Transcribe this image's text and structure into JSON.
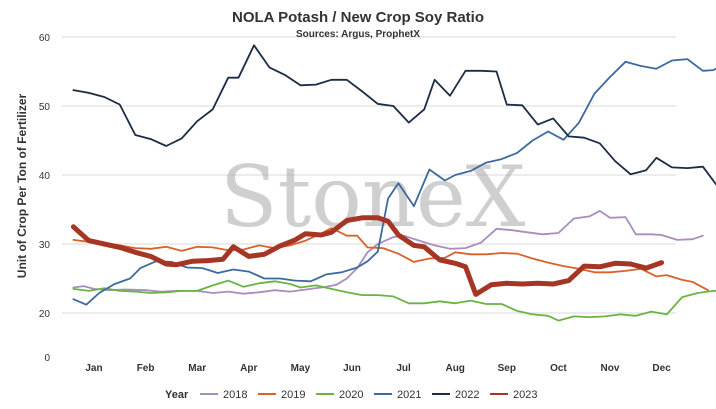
{
  "chart_data": {
    "type": "line",
    "title": "NOLA Potash / New Crop Soy Ratio",
    "subtitle": "Sources: Argus, ProphetX",
    "ylabel": "Unit of Crop Per Ton of Fertilizer",
    "xlabel": "",
    "ylim": [
      0,
      60
    ],
    "yticks": [
      0,
      20,
      30,
      40,
      50,
      60
    ],
    "ytick_labels": [
      "0",
      "20",
      "30",
      "40",
      "50",
      "60"
    ],
    "grid": true,
    "months": [
      "Jan",
      "Feb",
      "Mar",
      "Apr",
      "May",
      "Jun",
      "Jul",
      "Aug",
      "Sep",
      "Oct",
      "Nov",
      "Dec"
    ],
    "legend_title": "Year",
    "legend_position": "bottom",
    "watermark": "StoneX",
    "series": [
      {
        "name": "2018",
        "color": "#a98dbd",
        "width": 1.8,
        "points": [
          [
            -0.4,
            23.7
          ],
          [
            -0.2,
            23.9
          ],
          [
            0.0,
            23.5
          ],
          [
            0.3,
            23.3
          ],
          [
            0.6,
            23.4
          ],
          [
            1.0,
            23.3
          ],
          [
            1.3,
            23.1
          ],
          [
            1.6,
            23.2
          ],
          [
            2.0,
            23.2
          ],
          [
            2.3,
            22.9
          ],
          [
            2.6,
            23.1
          ],
          [
            2.9,
            22.8
          ],
          [
            3.2,
            23.0
          ],
          [
            3.5,
            23.3
          ],
          [
            3.8,
            23.1
          ],
          [
            4.2,
            23.5
          ],
          [
            4.5,
            23.8
          ],
          [
            4.7,
            24.1
          ],
          [
            4.9,
            25.0
          ],
          [
            5.1,
            26.5
          ],
          [
            5.3,
            28.8
          ],
          [
            5.5,
            30.0
          ],
          [
            5.8,
            31.0
          ],
          [
            6.0,
            31.2
          ],
          [
            6.3,
            30.5
          ],
          [
            6.6,
            29.8
          ],
          [
            6.9,
            29.3
          ],
          [
            7.2,
            29.4
          ],
          [
            7.5,
            30.2
          ],
          [
            7.8,
            32.2
          ],
          [
            8.1,
            32.0
          ],
          [
            8.4,
            31.7
          ],
          [
            8.7,
            31.4
          ],
          [
            9.0,
            31.6
          ],
          [
            9.3,
            33.7
          ],
          [
            9.6,
            34.0
          ],
          [
            9.8,
            34.8
          ],
          [
            10.0,
            33.8
          ],
          [
            10.3,
            33.9
          ],
          [
            10.5,
            31.4
          ],
          [
            10.8,
            31.4
          ],
          [
            11.0,
            31.3
          ],
          [
            11.3,
            30.6
          ],
          [
            11.6,
            30.7
          ],
          [
            11.8,
            31.2
          ]
        ]
      },
      {
        "name": "2019",
        "color": "#d8622a",
        "width": 1.8,
        "points": [
          [
            -0.4,
            30.6
          ],
          [
            -0.1,
            30.3
          ],
          [
            0.2,
            30.2
          ],
          [
            0.5,
            29.8
          ],
          [
            0.8,
            29.4
          ],
          [
            1.1,
            29.3
          ],
          [
            1.4,
            29.6
          ],
          [
            1.7,
            29.0
          ],
          [
            2.0,
            29.6
          ],
          [
            2.3,
            29.5
          ],
          [
            2.6,
            29.1
          ],
          [
            2.9,
            29.2
          ],
          [
            3.2,
            29.8
          ],
          [
            3.5,
            29.4
          ],
          [
            3.8,
            29.8
          ],
          [
            4.1,
            30.5
          ],
          [
            4.4,
            31.5
          ],
          [
            4.6,
            32.3
          ],
          [
            4.9,
            31.2
          ],
          [
            5.1,
            31.2
          ],
          [
            5.3,
            29.5
          ],
          [
            5.6,
            29.4
          ],
          [
            5.9,
            28.6
          ],
          [
            6.2,
            27.4
          ],
          [
            6.5,
            27.9
          ],
          [
            6.8,
            28.0
          ],
          [
            7.0,
            28.8
          ],
          [
            7.3,
            28.5
          ],
          [
            7.6,
            28.5
          ],
          [
            7.9,
            28.7
          ],
          [
            8.2,
            28.6
          ],
          [
            8.5,
            27.9
          ],
          [
            8.8,
            27.3
          ],
          [
            9.1,
            26.8
          ],
          [
            9.4,
            26.4
          ],
          [
            9.7,
            25.9
          ],
          [
            10.0,
            25.9
          ],
          [
            10.3,
            26.1
          ],
          [
            10.6,
            26.4
          ],
          [
            10.9,
            25.3
          ],
          [
            11.1,
            25.5
          ],
          [
            11.4,
            24.8
          ],
          [
            11.6,
            24.5
          ],
          [
            11.9,
            23.3
          ]
        ]
      },
      {
        "name": "2020",
        "color": "#6ab443",
        "width": 1.8,
        "points": [
          [
            -0.4,
            23.5
          ],
          [
            -0.1,
            23.2
          ],
          [
            0.2,
            23.6
          ],
          [
            0.5,
            23.2
          ],
          [
            0.8,
            23.1
          ],
          [
            1.1,
            22.9
          ],
          [
            1.4,
            23.0
          ],
          [
            1.7,
            23.2
          ],
          [
            2.0,
            23.2
          ],
          [
            2.3,
            24.0
          ],
          [
            2.6,
            24.7
          ],
          [
            2.9,
            23.8
          ],
          [
            3.2,
            24.3
          ],
          [
            3.5,
            24.6
          ],
          [
            3.8,
            24.2
          ],
          [
            4.0,
            23.7
          ],
          [
            4.3,
            24.0
          ],
          [
            4.6,
            23.5
          ],
          [
            4.9,
            23.0
          ],
          [
            5.2,
            22.6
          ],
          [
            5.5,
            22.6
          ],
          [
            5.8,
            22.4
          ],
          [
            6.1,
            21.4
          ],
          [
            6.4,
            21.4
          ],
          [
            6.7,
            21.7
          ],
          [
            7.0,
            21.4
          ],
          [
            7.3,
            21.8
          ],
          [
            7.6,
            21.3
          ],
          [
            7.9,
            21.3
          ],
          [
            8.2,
            20.3
          ],
          [
            8.5,
            19.8
          ],
          [
            8.8,
            19.6
          ],
          [
            9.0,
            18.9
          ],
          [
            9.3,
            19.5
          ],
          [
            9.6,
            19.4
          ],
          [
            9.9,
            19.5
          ],
          [
            10.2,
            19.8
          ],
          [
            10.5,
            19.6
          ],
          [
            10.8,
            20.2
          ],
          [
            11.1,
            19.8
          ],
          [
            11.4,
            22.3
          ],
          [
            11.7,
            22.9
          ],
          [
            12.0,
            23.2
          ],
          [
            12.3,
            23.2
          ],
          [
            12.6,
            23.0
          ]
        ]
      },
      {
        "name": "2021",
        "color": "#3d6a9e",
        "width": 1.8,
        "points": [
          [
            -0.4,
            22.0
          ],
          [
            -0.15,
            21.2
          ],
          [
            0.1,
            22.9
          ],
          [
            0.4,
            24.2
          ],
          [
            0.7,
            25.0
          ],
          [
            0.9,
            26.5
          ],
          [
            1.2,
            27.5
          ],
          [
            1.5,
            27.4
          ],
          [
            1.8,
            26.6
          ],
          [
            2.1,
            26.5
          ],
          [
            2.4,
            25.8
          ],
          [
            2.7,
            26.3
          ],
          [
            3.0,
            26.0
          ],
          [
            3.3,
            25.0
          ],
          [
            3.6,
            25.0
          ],
          [
            3.9,
            24.7
          ],
          [
            4.2,
            24.6
          ],
          [
            4.5,
            25.6
          ],
          [
            4.8,
            25.9
          ],
          [
            5.1,
            26.6
          ],
          [
            5.3,
            27.5
          ],
          [
            5.5,
            28.9
          ],
          [
            5.7,
            36.6
          ],
          [
            5.9,
            38.8
          ],
          [
            6.2,
            35.5
          ],
          [
            6.5,
            40.8
          ],
          [
            6.8,
            39.2
          ],
          [
            7.0,
            40.0
          ],
          [
            7.3,
            40.6
          ],
          [
            7.6,
            41.8
          ],
          [
            7.9,
            42.3
          ],
          [
            8.2,
            43.2
          ],
          [
            8.5,
            45.0
          ],
          [
            8.8,
            46.3
          ],
          [
            9.1,
            45.1
          ],
          [
            9.4,
            47.6
          ],
          [
            9.7,
            51.8
          ],
          [
            10.0,
            54.2
          ],
          [
            10.3,
            56.4
          ],
          [
            10.6,
            55.8
          ],
          [
            10.9,
            55.4
          ],
          [
            11.2,
            56.6
          ],
          [
            11.5,
            56.8
          ],
          [
            11.8,
            55.1
          ],
          [
            12.0,
            55.2
          ],
          [
            12.3,
            56.3
          ],
          [
            12.5,
            55.0
          ],
          [
            12.7,
            55.0
          ],
          [
            12.9,
            54.0
          ]
        ]
      },
      {
        "name": "2022",
        "color": "#1c2c45",
        "width": 1.8,
        "points": [
          [
            -0.4,
            52.3
          ],
          [
            -0.1,
            51.9
          ],
          [
            0.2,
            51.3
          ],
          [
            0.5,
            50.2
          ],
          [
            0.8,
            45.8
          ],
          [
            1.1,
            45.2
          ],
          [
            1.4,
            44.2
          ],
          [
            1.7,
            45.3
          ],
          [
            2.0,
            47.8
          ],
          [
            2.3,
            49.5
          ],
          [
            2.6,
            54.1
          ],
          [
            2.8,
            54.1
          ],
          [
            3.1,
            58.8
          ],
          [
            3.4,
            55.6
          ],
          [
            3.7,
            54.5
          ],
          [
            4.0,
            53.0
          ],
          [
            4.3,
            53.1
          ],
          [
            4.6,
            53.8
          ],
          [
            4.9,
            53.8
          ],
          [
            5.2,
            52.1
          ],
          [
            5.5,
            50.3
          ],
          [
            5.8,
            50.0
          ],
          [
            6.1,
            47.6
          ],
          [
            6.4,
            49.5
          ],
          [
            6.6,
            53.8
          ],
          [
            6.9,
            51.5
          ],
          [
            7.2,
            55.1
          ],
          [
            7.5,
            55.1
          ],
          [
            7.8,
            55.0
          ],
          [
            8.0,
            50.2
          ],
          [
            8.3,
            50.1
          ],
          [
            8.6,
            47.3
          ],
          [
            8.9,
            48.2
          ],
          [
            9.2,
            45.6
          ],
          [
            9.5,
            45.4
          ],
          [
            9.8,
            44.6
          ],
          [
            10.1,
            42.0
          ],
          [
            10.4,
            40.1
          ],
          [
            10.7,
            40.7
          ],
          [
            10.9,
            42.5
          ],
          [
            11.2,
            41.1
          ],
          [
            11.5,
            41.0
          ],
          [
            11.8,
            41.2
          ],
          [
            12.1,
            38.2
          ],
          [
            12.4,
            37.5
          ],
          [
            12.7,
            37.8
          ],
          [
            13.0,
            37.5
          ],
          [
            13.3,
            37.7
          ],
          [
            13.6,
            35.0
          ],
          [
            13.9,
            35.0
          ],
          [
            14.1,
            33.6
          ]
        ]
      },
      {
        "name": "2023",
        "color": "#a53524",
        "width": 5,
        "points": [
          [
            -0.4,
            32.5
          ],
          [
            -0.1,
            30.5
          ],
          [
            0.2,
            30.0
          ],
          [
            0.5,
            29.5
          ],
          [
            0.8,
            28.8
          ],
          [
            1.1,
            28.2
          ],
          [
            1.4,
            27.1
          ],
          [
            1.6,
            27.0
          ],
          [
            1.9,
            27.5
          ],
          [
            2.2,
            27.6
          ],
          [
            2.5,
            27.8
          ],
          [
            2.7,
            29.6
          ],
          [
            3.0,
            28.2
          ],
          [
            3.3,
            28.5
          ],
          [
            3.6,
            29.7
          ],
          [
            3.9,
            30.6
          ],
          [
            4.1,
            31.5
          ],
          [
            4.4,
            31.3
          ],
          [
            4.6,
            31.7
          ],
          [
            4.9,
            33.4
          ],
          [
            5.2,
            33.8
          ],
          [
            5.5,
            33.8
          ],
          [
            5.7,
            33.3
          ],
          [
            5.9,
            31.3
          ],
          [
            6.2,
            29.8
          ],
          [
            6.4,
            29.6
          ],
          [
            6.7,
            27.7
          ],
          [
            7.0,
            27.2
          ],
          [
            7.2,
            26.7
          ],
          [
            7.4,
            22.7
          ],
          [
            7.7,
            24.1
          ],
          [
            8.0,
            24.3
          ],
          [
            8.3,
            24.2
          ],
          [
            8.6,
            24.3
          ],
          [
            8.9,
            24.2
          ],
          [
            9.2,
            24.7
          ],
          [
            9.5,
            26.8
          ],
          [
            9.8,
            26.7
          ],
          [
            10.1,
            27.2
          ],
          [
            10.4,
            27.1
          ],
          [
            10.7,
            26.5
          ],
          [
            11.0,
            27.3
          ]
        ]
      }
    ]
  }
}
